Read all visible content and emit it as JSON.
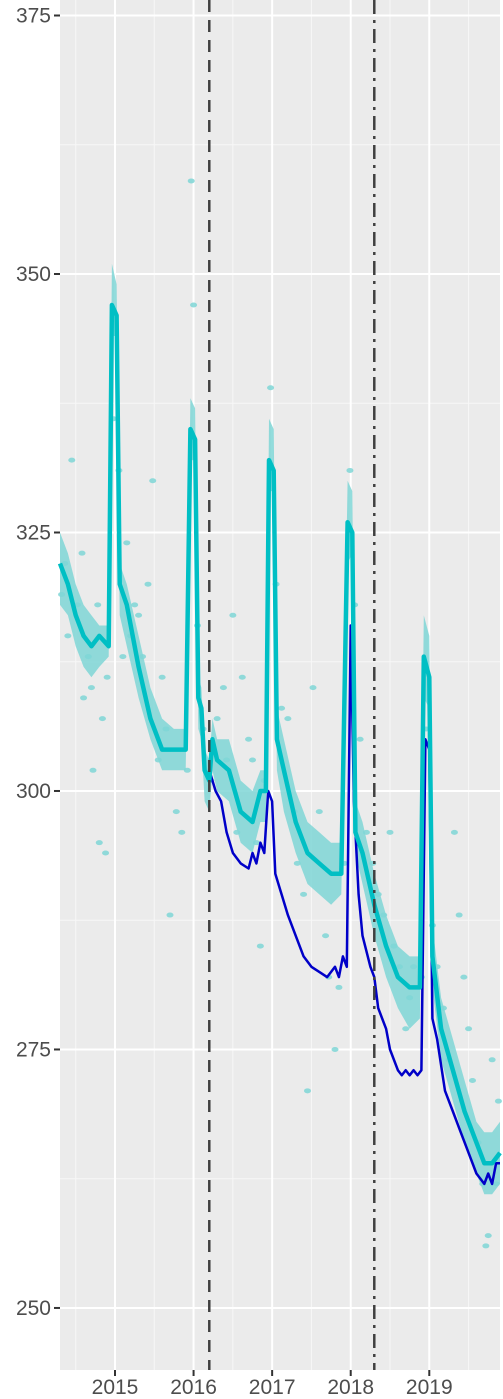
{
  "chart_data": {
    "type": "line",
    "title": "",
    "xlabel": "",
    "ylabel": "",
    "xlim": [
      2014.3,
      2019.9
    ],
    "ylim": [
      244,
      376.5
    ],
    "x_ticks": [
      {
        "value": 2015.0,
        "label": "2015"
      },
      {
        "value": 2016.0,
        "label": "2016"
      },
      {
        "value": 2017.0,
        "label": "2017"
      },
      {
        "value": 2018.0,
        "label": "2018"
      },
      {
        "value": 2019.0,
        "label": "2019"
      }
    ],
    "y_ticks": [
      {
        "value": 250,
        "label": "250"
      },
      {
        "value": 275,
        "label": "275"
      },
      {
        "value": 300,
        "label": "300"
      },
      {
        "value": 325,
        "label": "325"
      },
      {
        "value": 350,
        "label": "350"
      },
      {
        "value": 375,
        "label": "375"
      }
    ],
    "grid": true,
    "vlines": [
      {
        "x": 2016.2,
        "style": "dashed"
      },
      {
        "x": 2018.3,
        "style": "dashdot"
      }
    ],
    "series": [
      {
        "kind": "band",
        "color": "#7fd6d6",
        "points": [
          [
            2014.3,
            325,
            318
          ],
          [
            2014.4,
            323,
            317
          ],
          [
            2014.5,
            320,
            314
          ],
          [
            2014.6,
            318,
            312
          ],
          [
            2014.7,
            317,
            311
          ],
          [
            2014.8,
            316,
            312
          ],
          [
            2014.92,
            316,
            313
          ],
          [
            2014.96,
            351,
            344
          ],
          [
            2015.02,
            349,
            344
          ],
          [
            2015.06,
            322,
            317
          ],
          [
            2015.15,
            320,
            314
          ],
          [
            2015.3,
            315,
            309
          ],
          [
            2015.45,
            310,
            305
          ],
          [
            2015.6,
            307,
            302
          ],
          [
            2015.75,
            306,
            302
          ],
          [
            2015.9,
            306,
            302
          ],
          [
            2015.96,
            338,
            332
          ],
          [
            2016.02,
            337,
            332
          ],
          [
            2016.06,
            311,
            306
          ],
          [
            2016.1,
            310,
            305
          ],
          [
            2016.14,
            304,
            299
          ],
          [
            2016.2,
            303,
            298
          ],
          [
            2016.24,
            307,
            302
          ],
          [
            2016.3,
            305,
            300
          ],
          [
            2016.45,
            305,
            299
          ],
          [
            2016.6,
            301,
            295
          ],
          [
            2016.75,
            300,
            294
          ],
          [
            2016.85,
            302,
            297
          ],
          [
            2016.92,
            302,
            297
          ],
          [
            2016.96,
            336,
            329
          ],
          [
            2017.02,
            335,
            329
          ],
          [
            2017.06,
            308,
            302
          ],
          [
            2017.15,
            305,
            298
          ],
          [
            2017.3,
            300,
            294
          ],
          [
            2017.45,
            297,
            291
          ],
          [
            2017.6,
            296,
            290
          ],
          [
            2017.75,
            295,
            289
          ],
          [
            2017.88,
            295,
            290
          ],
          [
            2017.96,
            330,
            322
          ],
          [
            2018.02,
            329,
            323
          ],
          [
            2018.06,
            299,
            294
          ],
          [
            2018.15,
            297,
            291
          ],
          [
            2018.3,
            292,
            286
          ],
          [
            2018.45,
            288,
            282
          ],
          [
            2018.6,
            285,
            279
          ],
          [
            2018.75,
            284,
            277
          ],
          [
            2018.88,
            284,
            278
          ],
          [
            2018.93,
            317,
            309
          ],
          [
            2019.0,
            315,
            308
          ],
          [
            2019.04,
            287,
            281
          ],
          [
            2019.15,
            280,
            274
          ],
          [
            2019.3,
            276,
            270
          ],
          [
            2019.45,
            272,
            266
          ],
          [
            2019.6,
            268,
            263
          ],
          [
            2019.7,
            267,
            261
          ],
          [
            2019.8,
            267,
            261
          ],
          [
            2019.9,
            268,
            262
          ]
        ]
      },
      {
        "kind": "line",
        "color": "#0000c8",
        "points": [
          [
            2016.2,
            302
          ],
          [
            2016.28,
            300
          ],
          [
            2016.35,
            299
          ],
          [
            2016.42,
            296
          ],
          [
            2016.5,
            294
          ],
          [
            2016.6,
            293
          ],
          [
            2016.7,
            292.5
          ],
          [
            2016.75,
            294
          ],
          [
            2016.8,
            293
          ],
          [
            2016.85,
            295
          ],
          [
            2016.9,
            294
          ],
          [
            2016.95,
            300
          ],
          [
            2017.0,
            299
          ],
          [
            2017.04,
            292
          ],
          [
            2017.12,
            290
          ],
          [
            2017.2,
            288
          ],
          [
            2017.3,
            286
          ],
          [
            2017.4,
            284
          ],
          [
            2017.5,
            283
          ],
          [
            2017.6,
            282.5
          ],
          [
            2017.7,
            282
          ],
          [
            2017.8,
            283
          ],
          [
            2017.85,
            282
          ],
          [
            2017.9,
            284
          ],
          [
            2017.95,
            283
          ],
          [
            2018.0,
            316
          ],
          [
            2018.04,
            299
          ],
          [
            2018.1,
            290
          ],
          [
            2018.15,
            286
          ],
          [
            2018.25,
            283
          ],
          [
            2018.3,
            282
          ],
          [
            2018.35,
            279
          ],
          [
            2018.45,
            277
          ],
          [
            2018.5,
            275
          ],
          [
            2018.6,
            273
          ],
          [
            2018.65,
            272.5
          ],
          [
            2018.7,
            273
          ],
          [
            2018.75,
            272.5
          ],
          [
            2018.8,
            273
          ],
          [
            2018.85,
            272.5
          ],
          [
            2018.9,
            273
          ],
          [
            2018.95,
            305
          ],
          [
            2019.0,
            304
          ],
          [
            2019.04,
            278
          ],
          [
            2019.1,
            276
          ],
          [
            2019.2,
            271
          ],
          [
            2019.3,
            269
          ],
          [
            2019.4,
            267
          ],
          [
            2019.5,
            265
          ],
          [
            2019.6,
            263
          ],
          [
            2019.7,
            262
          ],
          [
            2019.75,
            263
          ],
          [
            2019.8,
            262
          ],
          [
            2019.85,
            264
          ],
          [
            2019.9,
            264
          ]
        ]
      },
      {
        "kind": "line",
        "color": "#00bfc4",
        "points": [
          [
            2014.3,
            322
          ],
          [
            2014.4,
            320
          ],
          [
            2014.5,
            317
          ],
          [
            2014.6,
            315
          ],
          [
            2014.7,
            314
          ],
          [
            2014.8,
            315
          ],
          [
            2014.92,
            314
          ],
          [
            2014.96,
            347
          ],
          [
            2015.02,
            346
          ],
          [
            2015.06,
            320
          ],
          [
            2015.15,
            318
          ],
          [
            2015.3,
            312
          ],
          [
            2015.45,
            307
          ],
          [
            2015.6,
            304
          ],
          [
            2015.75,
            304
          ],
          [
            2015.9,
            304
          ],
          [
            2015.96,
            335
          ],
          [
            2016.02,
            334
          ],
          [
            2016.06,
            309
          ],
          [
            2016.1,
            308
          ],
          [
            2016.14,
            302
          ],
          [
            2016.2,
            301
          ],
          [
            2016.24,
            305
          ],
          [
            2016.3,
            303
          ],
          [
            2016.45,
            302
          ],
          [
            2016.6,
            298
          ],
          [
            2016.75,
            297
          ],
          [
            2016.85,
            300
          ],
          [
            2016.92,
            300
          ],
          [
            2016.96,
            332
          ],
          [
            2017.02,
            331
          ],
          [
            2017.06,
            305
          ],
          [
            2017.15,
            302
          ],
          [
            2017.3,
            297
          ],
          [
            2017.45,
            294
          ],
          [
            2017.6,
            293
          ],
          [
            2017.75,
            292
          ],
          [
            2017.88,
            292
          ],
          [
            2017.96,
            326
          ],
          [
            2018.02,
            325
          ],
          [
            2018.06,
            296
          ],
          [
            2018.15,
            294
          ],
          [
            2018.3,
            289
          ],
          [
            2018.45,
            285
          ],
          [
            2018.6,
            282
          ],
          [
            2018.75,
            281
          ],
          [
            2018.88,
            281
          ],
          [
            2018.93,
            313
          ],
          [
            2019.0,
            311
          ],
          [
            2019.04,
            284
          ],
          [
            2019.15,
            277
          ],
          [
            2019.3,
            273
          ],
          [
            2019.45,
            269
          ],
          [
            2019.6,
            266
          ],
          [
            2019.7,
            264
          ],
          [
            2019.8,
            264
          ],
          [
            2019.9,
            265
          ]
        ]
      }
    ],
    "scatter": {
      "color": "#7fd6d6",
      "points": [
        [
          2014.32,
          319
        ],
        [
          2014.36,
          322
        ],
        [
          2014.4,
          315
        ],
        [
          2014.45,
          332
        ],
        [
          2014.52,
          318
        ],
        [
          2014.58,
          323
        ],
        [
          2014.6,
          309
        ],
        [
          2014.66,
          313
        ],
        [
          2014.7,
          310
        ],
        [
          2014.72,
          302
        ],
        [
          2014.78,
          318
        ],
        [
          2014.8,
          295
        ],
        [
          2014.84,
          307
        ],
        [
          2014.88,
          294
        ],
        [
          2014.9,
          311
        ],
        [
          2014.98,
          336
        ],
        [
          2015.05,
          331
        ],
        [
          2015.1,
          313
        ],
        [
          2015.15,
          324
        ],
        [
          2015.2,
          315
        ],
        [
          2015.25,
          318
        ],
        [
          2015.3,
          317
        ],
        [
          2015.35,
          313
        ],
        [
          2015.42,
          320
        ],
        [
          2015.48,
          330
        ],
        [
          2015.55,
          303
        ],
        [
          2015.6,
          311
        ],
        [
          2015.65,
          306
        ],
        [
          2015.7,
          288
        ],
        [
          2015.78,
          298
        ],
        [
          2015.85,
          296
        ],
        [
          2015.92,
          302
        ],
        [
          2015.97,
          359
        ],
        [
          2016.0,
          347
        ],
        [
          2016.05,
          316
        ],
        [
          2016.12,
          306
        ],
        [
          2016.22,
          301
        ],
        [
          2016.3,
          307
        ],
        [
          2016.38,
          310
        ],
        [
          2016.42,
          303
        ],
        [
          2016.5,
          317
        ],
        [
          2016.55,
          296
        ],
        [
          2016.62,
          311
        ],
        [
          2016.7,
          305
        ],
        [
          2016.75,
          303
        ],
        [
          2016.8,
          295
        ],
        [
          2016.85,
          285
        ],
        [
          2016.9,
          301
        ],
        [
          2016.98,
          339
        ],
        [
          2017.05,
          320
        ],
        [
          2017.12,
          308
        ],
        [
          2017.2,
          307
        ],
        [
          2017.28,
          298
        ],
        [
          2017.32,
          293
        ],
        [
          2017.4,
          290
        ],
        [
          2017.45,
          271
        ],
        [
          2017.52,
          310
        ],
        [
          2017.6,
          298
        ],
        [
          2017.68,
          286
        ],
        [
          2017.72,
          282
        ],
        [
          2017.8,
          275
        ],
        [
          2017.85,
          281
        ],
        [
          2017.92,
          293
        ],
        [
          2017.99,
          331
        ],
        [
          2018.05,
          318
        ],
        [
          2018.12,
          305
        ],
        [
          2018.2,
          296
        ],
        [
          2018.28,
          293
        ],
        [
          2018.35,
          290
        ],
        [
          2018.42,
          288
        ],
        [
          2018.5,
          296
        ],
        [
          2018.55,
          285
        ],
        [
          2018.62,
          283
        ],
        [
          2018.7,
          277
        ],
        [
          2018.75,
          280
        ],
        [
          2018.8,
          283
        ],
        [
          2018.9,
          282
        ],
        [
          2018.96,
          306
        ],
        [
          2019.04,
          287
        ],
        [
          2019.1,
          283
        ],
        [
          2019.18,
          279
        ],
        [
          2019.25,
          274
        ],
        [
          2019.32,
          296
        ],
        [
          2019.38,
          288
        ],
        [
          2019.44,
          282
        ],
        [
          2019.5,
          277
        ],
        [
          2019.55,
          272
        ],
        [
          2019.62,
          266
        ],
        [
          2019.68,
          262
        ],
        [
          2019.72,
          256
        ],
        [
          2019.75,
          257
        ],
        [
          2019.8,
          274
        ],
        [
          2019.85,
          262
        ],
        [
          2019.88,
          270
        ]
      ]
    }
  }
}
